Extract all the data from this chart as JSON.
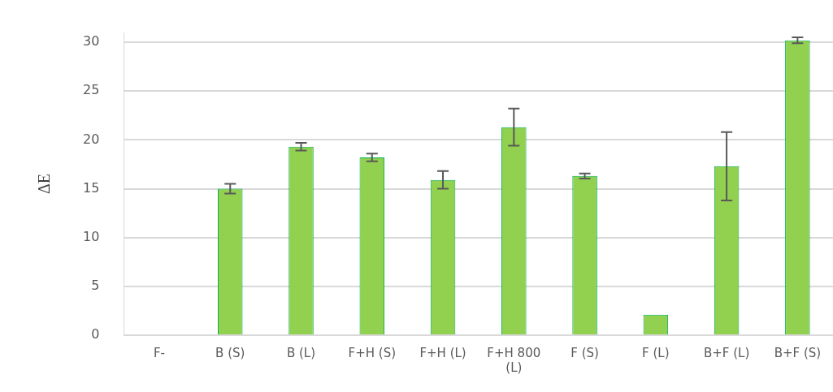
{
  "chart_data": {
    "type": "bar",
    "ylabel": "ΔE",
    "categories": [
      "F-",
      "B (S)",
      "B (L)",
      "F+H (S)",
      "F+H (L)",
      "F+H 800 (L)",
      "F (S)",
      "F (L)",
      "B+F (L)",
      "B+F (S)"
    ],
    "values": [
      0,
      15.0,
      19.3,
      18.2,
      15.9,
      21.3,
      16.3,
      2.1,
      17.3,
      30.2
    ],
    "errors": [
      null,
      0.5,
      0.4,
      0.4,
      0.9,
      1.9,
      0.25,
      null,
      3.5,
      0.3
    ],
    "color": "#92d050",
    "ylim": [
      0,
      31
    ],
    "yticks": [
      0,
      5,
      10,
      15,
      20,
      25,
      30
    ],
    "grid": "y",
    "legend": false
  }
}
